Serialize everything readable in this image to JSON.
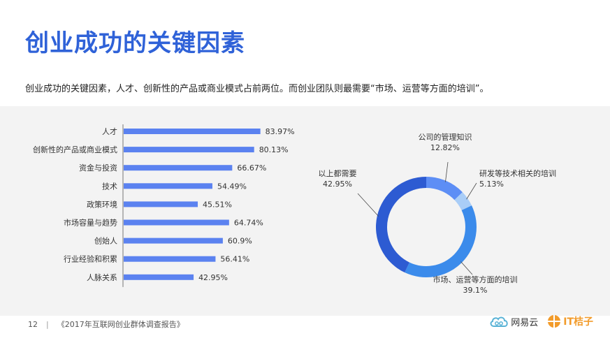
{
  "page": {
    "title": "创业成功的关键因素",
    "subtitle": "创业成功的关键因素，人才、创新性的产品或商业模式占前两位。而创业团队则最需要“市场、运营等方面的培训”。",
    "page_number": "12",
    "separator": "|",
    "report_name": "《2017年互联网创业群体调查报告》",
    "logos": {
      "netease": "网易云",
      "itjuzi": "IT桔子"
    }
  },
  "chart_data": [
    {
      "type": "bar",
      "orientation": "horizontal",
      "categories": [
        "人才",
        "创新性的产品或商业模式",
        "资金与投资",
        "技术",
        "政策环境",
        "市场容量与趋势",
        "创始人",
        "行业经验和积累",
        "人脉关系"
      ],
      "values": [
        83.97,
        80.13,
        66.67,
        54.49,
        45.51,
        64.74,
        60.9,
        56.41,
        42.95
      ],
      "value_labels": [
        "83.97%",
        "80.13%",
        "66.67%",
        "54.49%",
        "45.51%",
        "64.74%",
        "60.9%",
        "56.41%",
        "42.95%"
      ],
      "unit": "%",
      "xlim": [
        0,
        100
      ],
      "color": "#5b82f0",
      "grid": false
    },
    {
      "type": "pie",
      "donut": true,
      "categories": [
        "公司的管理知识",
        "研发等技术相关的培训",
        "市场、运营等方面的培训",
        "以上都需要"
      ],
      "values": [
        12.82,
        5.13,
        39.1,
        42.95
      ],
      "value_labels": [
        "12.82%",
        "5.13%",
        "39.1%",
        "42.95%"
      ],
      "colors": [
        "#5d8ef5",
        "#a9cdf7",
        "#3b8beb",
        "#2d5bd2"
      ],
      "legend": "none"
    }
  ]
}
